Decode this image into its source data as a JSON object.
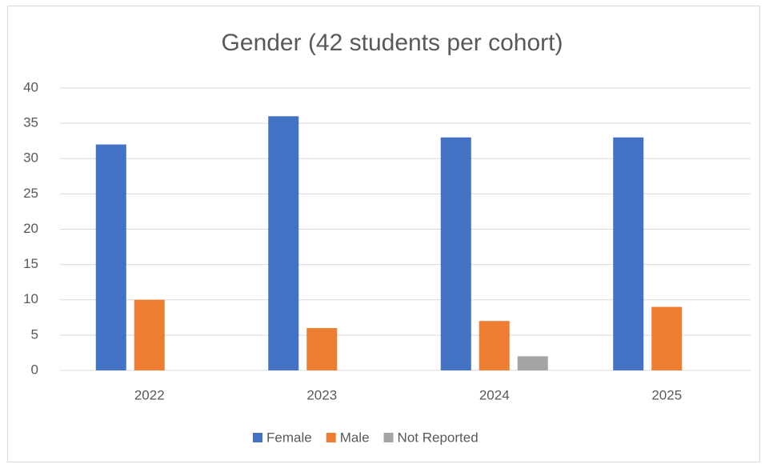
{
  "chart_data": {
    "type": "bar",
    "title": "Gender (42 students per cohort)",
    "categories": [
      "2022",
      "2023",
      "2024",
      "2025"
    ],
    "series": [
      {
        "name": "Female",
        "color": "#4472c4",
        "values": [
          32,
          36,
          33,
          33
        ]
      },
      {
        "name": "Male",
        "color": "#ed7d31",
        "values": [
          10,
          6,
          7,
          9
        ]
      },
      {
        "name": "Not Reported",
        "color": "#a5a5a5",
        "values": [
          0,
          0,
          2,
          0
        ]
      }
    ],
    "ylim": [
      0,
      40
    ],
    "yticks": [
      0,
      5,
      10,
      15,
      20,
      25,
      30,
      35,
      40
    ],
    "grid": true,
    "legend": "bottom"
  }
}
